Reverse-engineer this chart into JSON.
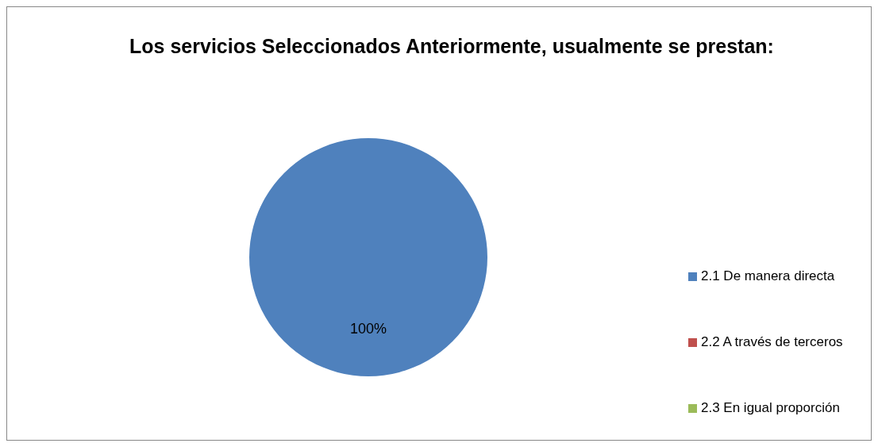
{
  "chart_data": {
    "type": "pie",
    "title": "Los servicios Seleccionados Anteriormente, usualmente se prestan:",
    "categories": [
      "2.1 De manera directa",
      "2.2 A través de terceros",
      "2.3 En igual proporción"
    ],
    "values": [
      100,
      0,
      0
    ],
    "colors": [
      "#4f81bd",
      "#c0504d",
      "#9bbb59"
    ],
    "value_labels": [
      "100%",
      null,
      null
    ],
    "legend": "right"
  }
}
